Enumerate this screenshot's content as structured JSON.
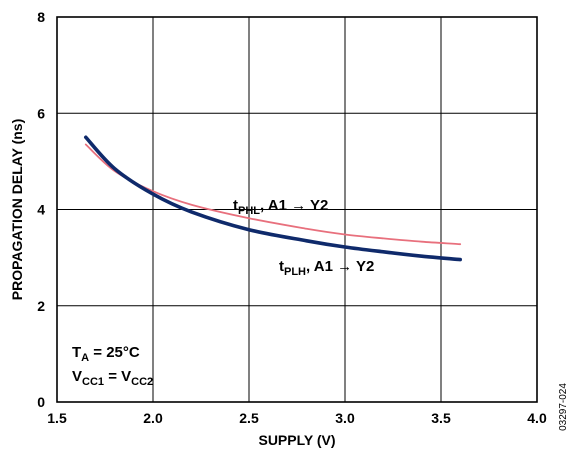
{
  "chart_data": {
    "type": "line",
    "xlabel": "SUPPLY (V)",
    "ylabel": "PROPAGATION DELAY (ns)",
    "xlim": [
      1.5,
      4.0
    ],
    "ylim": [
      0,
      8
    ],
    "x_ticks": [
      "1.5",
      "2.0",
      "2.5",
      "3.0",
      "3.5",
      "4.0"
    ],
    "y_ticks": [
      "0",
      "2",
      "4",
      "6",
      "8"
    ],
    "grid": true,
    "series": [
      {
        "label_main": "t",
        "label_sub": "PHL",
        "label_rest": ", A1 → Y2",
        "color": "#e8707d",
        "x": [
          1.65,
          1.8,
          2.0,
          2.2,
          2.5,
          2.8,
          3.0,
          3.2,
          3.4,
          3.6
        ],
        "y": [
          5.35,
          4.8,
          4.38,
          4.1,
          3.82,
          3.6,
          3.48,
          3.4,
          3.33,
          3.28
        ]
      },
      {
        "label_main": "t",
        "label_sub": "PLH",
        "label_rest": ", A1 → Y2",
        "color": "#0f2a6b",
        "x": [
          1.65,
          1.8,
          2.0,
          2.2,
          2.5,
          2.8,
          3.0,
          3.2,
          3.4,
          3.6
        ],
        "y": [
          5.5,
          4.85,
          4.32,
          3.95,
          3.58,
          3.35,
          3.22,
          3.12,
          3.03,
          2.96
        ]
      }
    ],
    "annotations": {
      "ta_main": "T",
      "ta_sub": "A",
      "ta_rest": " = 25°C",
      "vcc_main": "V",
      "vcc_sub1": "CC1",
      "vcc_mid": " = V",
      "vcc_sub2": "CC2"
    },
    "figure_code": "03297-024"
  }
}
